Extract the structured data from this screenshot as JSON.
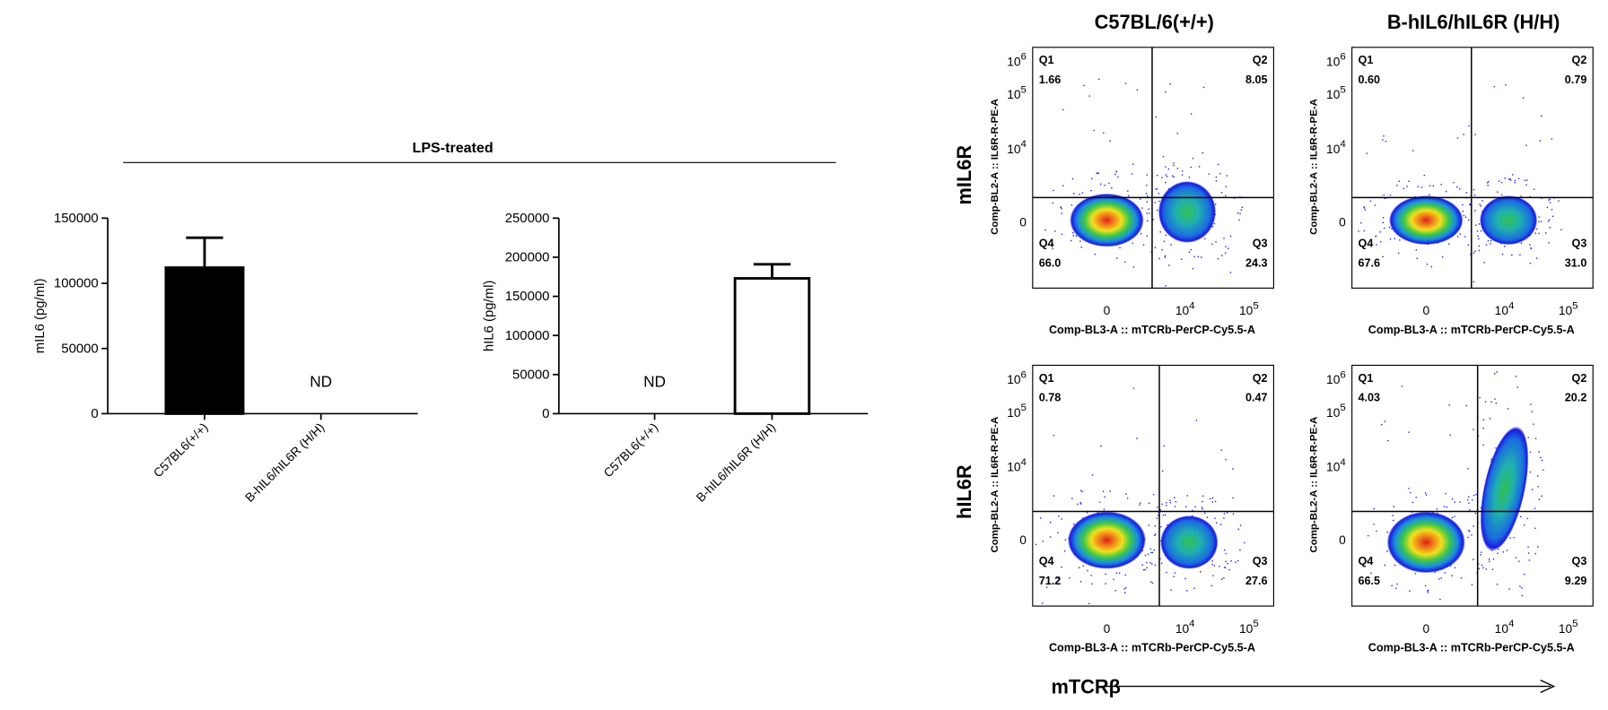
{
  "header": {
    "title": "LPS-treated"
  },
  "chart_data": [
    {
      "type": "bar",
      "categories": [
        "C57BL6(+/+)",
        "B-hIL6/hIL6R (H/H)"
      ],
      "values": [
        112000,
        null
      ],
      "errors": [
        23000,
        null
      ],
      "value_labels": [
        null,
        "ND"
      ],
      "ylabel": "mIL6 (pg/ml)",
      "ylim": [
        0,
        150000
      ],
      "yticks": [
        0,
        50000,
        100000,
        150000
      ],
      "colors": [
        "#000000",
        "#ffffff"
      ]
    },
    {
      "type": "bar",
      "categories": [
        "C57BL6(+/+)",
        "B-hIL6/hIL6R (H/H)"
      ],
      "values": [
        null,
        173000
      ],
      "errors": [
        null,
        18000
      ],
      "value_labels": [
        "ND",
        null
      ],
      "ylabel": "hIL6 (pg/ml)",
      "ylim": [
        0,
        250000
      ],
      "yticks": [
        0,
        50000,
        100000,
        150000,
        200000,
        250000
      ],
      "colors": [
        "#ffffff",
        "#ffffff"
      ]
    }
  ],
  "flow": {
    "columns": [
      "C57BL/6(+/+)",
      "B-hIL6/hIL6R (H/H)"
    ],
    "rows": [
      "mIL6R",
      "hIL6R"
    ],
    "x_axis_label": "mTCRβ",
    "xticks": [
      {
        "label": "0"
      },
      {
        "label": "10",
        "exp": "4"
      },
      {
        "label": "10",
        "exp": "5"
      }
    ],
    "yticks": [
      {
        "label": "10",
        "exp": "6"
      },
      {
        "label": "10",
        "exp": "5"
      },
      {
        "label": "10",
        "exp": "4"
      },
      {
        "label": "0"
      }
    ],
    "panels": [
      {
        "xlabel": "Comp-BL3-A :: mTCRb-PerCP-Cy5.5-A",
        "ylabel": "Comp-BL2-A :: IL6R-R-PE-A",
        "quadrants": [
          {
            "name": "Q1",
            "value": "1.66"
          },
          {
            "name": "Q2",
            "value": "8.05"
          },
          {
            "name": "Q3",
            "value": "24.3"
          },
          {
            "name": "Q4",
            "value": "66.0"
          }
        ]
      },
      {
        "xlabel": "Comp-BL3-A :: mTCRb-PerCP-Cy5.5-A",
        "ylabel": "Comp-BL2-A :: IL6R-R-PE-A",
        "quadrants": [
          {
            "name": "Q1",
            "value": "0.60"
          },
          {
            "name": "Q2",
            "value": "0.79"
          },
          {
            "name": "Q3",
            "value": "31.0"
          },
          {
            "name": "Q4",
            "value": "67.6"
          }
        ]
      },
      {
        "xlabel": "Comp-BL3-A :: mTCRb-PerCP-Cy5.5-A",
        "ylabel": "Comp-BL2-A :: IL6R-R-PE-A",
        "quadrants": [
          {
            "name": "Q1",
            "value": "0.78"
          },
          {
            "name": "Q2",
            "value": "0.47"
          },
          {
            "name": "Q3",
            "value": "27.6"
          },
          {
            "name": "Q4",
            "value": "71.2"
          }
        ]
      },
      {
        "xlabel": "Comp-BL3-A :: mTCRb-PerCP-Cy5.5-A",
        "ylabel": "Comp-BL2-A :: IL6R-R-PE-A",
        "quadrants": [
          {
            "name": "Q1",
            "value": "4.03"
          },
          {
            "name": "Q2",
            "value": "20.2"
          },
          {
            "name": "Q3",
            "value": "9.29"
          },
          {
            "name": "Q4",
            "value": "66.5"
          }
        ]
      }
    ]
  }
}
